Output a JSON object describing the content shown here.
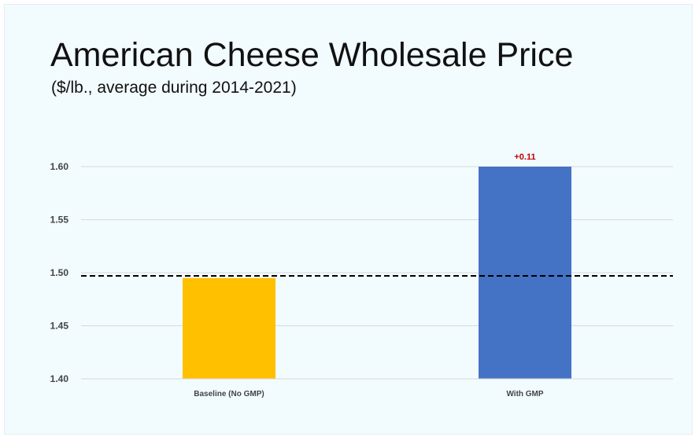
{
  "chart_data": {
    "type": "bar",
    "title": "American Cheese Wholesale Price",
    "subtitle": "($/lb., average during 2014-2021)",
    "categories": [
      "Baseline (No GMP)",
      "With GMP"
    ],
    "values": [
      1.495,
      1.6
    ],
    "bar_colors": [
      "#ffc000",
      "#4472c4"
    ],
    "data_labels": [
      "",
      "+0.11"
    ],
    "data_label_color": "#c00000",
    "yticks": [
      "1.40",
      "1.45",
      "1.50",
      "1.55",
      "1.60"
    ],
    "ylim": [
      1.4,
      1.6
    ],
    "reference_line": {
      "value": 1.497,
      "style": "dashed"
    },
    "grid": true,
    "xlabel": "",
    "ylabel": ""
  }
}
